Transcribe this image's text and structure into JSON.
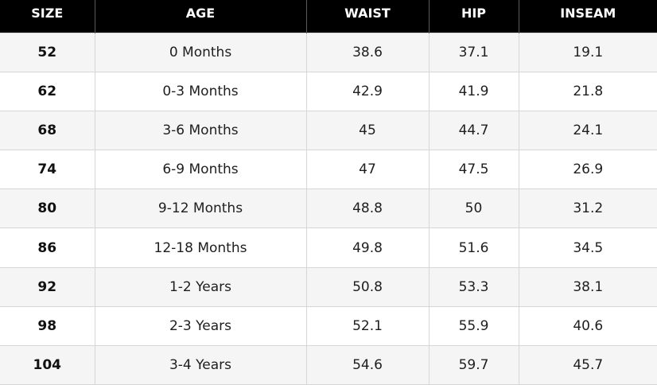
{
  "size_chart": {
    "headers": [
      "SIZE",
      "AGE",
      "WAIST",
      "HIP",
      "INSEAM"
    ],
    "rows": [
      [
        "52",
        "0 Months",
        "38.6",
        "37.1",
        "19.1"
      ],
      [
        "62",
        "0-3 Months",
        "42.9",
        "41.9",
        "21.8"
      ],
      [
        "68",
        "3-6 Months",
        "45",
        "44.7",
        "24.1"
      ],
      [
        "74",
        "6-9 Months",
        "47",
        "47.5",
        "26.9"
      ],
      [
        "80",
        "9-12 Months",
        "48.8",
        "50",
        "31.2"
      ],
      [
        "86",
        "12-18 Months",
        "49.8",
        "51.6",
        "34.5"
      ],
      [
        "92",
        "1-2 Years",
        "50.8",
        "53.3",
        "38.1"
      ],
      [
        "98",
        "2-3 Years",
        "52.1",
        "55.9",
        "40.6"
      ],
      [
        "104",
        "3-4 Years",
        "54.6",
        "59.7",
        "45.7"
      ]
    ]
  },
  "colors": {
    "header_background": "#000000",
    "header_text": "#ffffff",
    "row_alt_background": "#f5f5f5",
    "row_background": "#ffffff",
    "grid_line": "#d6d6d6"
  }
}
